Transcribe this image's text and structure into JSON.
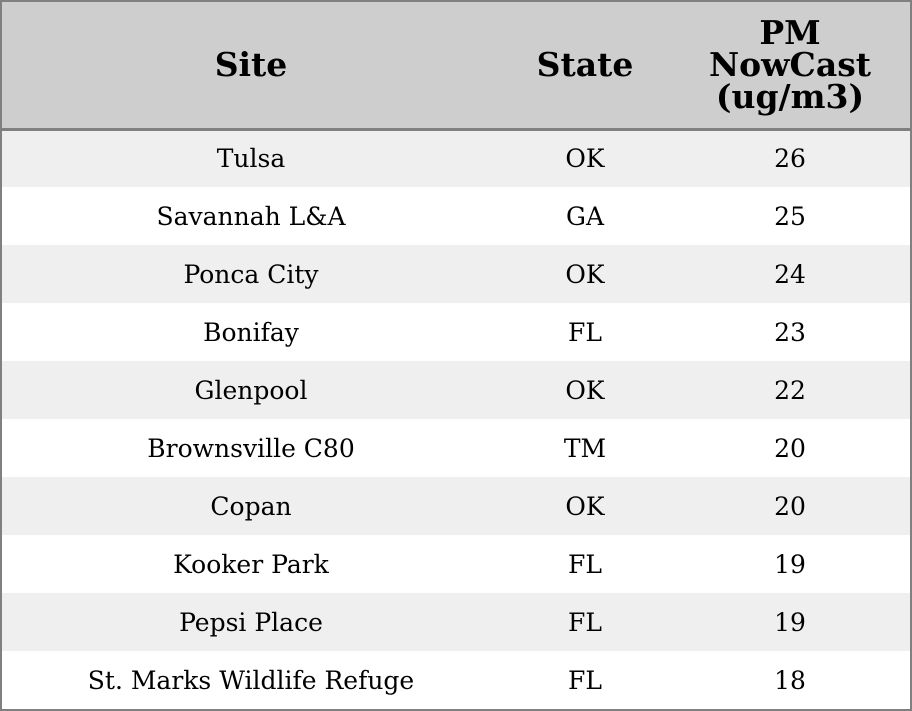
{
  "chart_data": {
    "type": "table",
    "columns": [
      "Site",
      "State",
      "PM NowCast (ug/m3)"
    ],
    "header_lines": [
      [
        "Site"
      ],
      [
        "State"
      ],
      [
        "PM",
        "NowCast",
        "(ug/m3)"
      ]
    ],
    "rows": [
      {
        "site": "Tulsa",
        "state": "OK",
        "pm": "26"
      },
      {
        "site": "Savannah L&A",
        "state": "GA",
        "pm": "25"
      },
      {
        "site": "Ponca City",
        "state": "OK",
        "pm": "24"
      },
      {
        "site": "Bonifay",
        "state": "FL",
        "pm": "23"
      },
      {
        "site": "Glenpool",
        "state": "OK",
        "pm": "22"
      },
      {
        "site": "Brownsville C80",
        "state": "TM",
        "pm": "20"
      },
      {
        "site": "Copan",
        "state": "OK",
        "pm": "20"
      },
      {
        "site": "Kooker Park",
        "state": "FL",
        "pm": "19"
      },
      {
        "site": "Pepsi Place",
        "state": "FL",
        "pm": "19"
      },
      {
        "site": "St. Marks Wildlife Refuge",
        "state": "FL",
        "pm": "18"
      }
    ]
  },
  "colors": {
    "header_bg": "#cecece",
    "row_alt_bg": "#efefef",
    "row_bg": "#ffffff",
    "border": "#808080"
  }
}
